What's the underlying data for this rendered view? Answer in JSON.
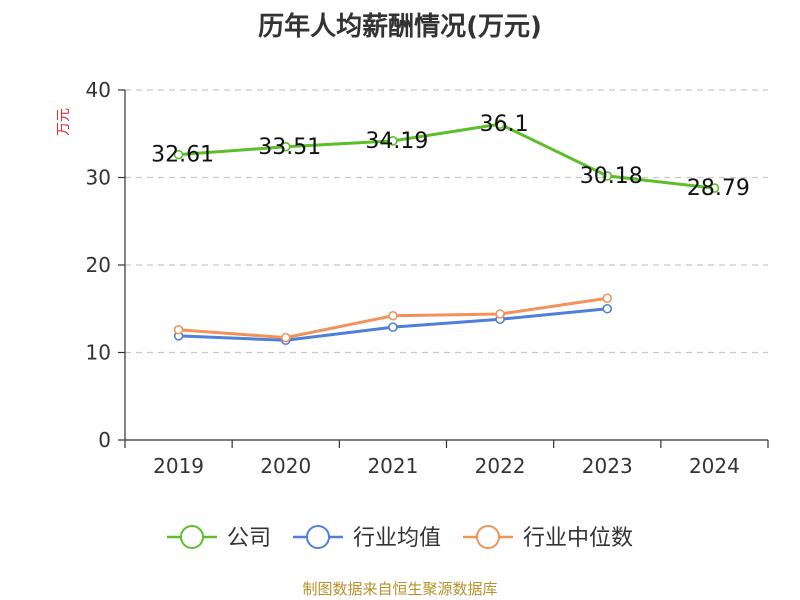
{
  "chart_data": {
    "type": "line",
    "title": "历年人均薪酬情况(万元)",
    "ylabel": "万元",
    "xlabel": "",
    "ylim": [
      0,
      40
    ],
    "yticks": [
      0,
      10,
      20,
      30,
      40
    ],
    "categories": [
      "2019",
      "2020",
      "2021",
      "2022",
      "2023",
      "2024"
    ],
    "grid": "horizontal-dashed",
    "legend_position": "bottom-center",
    "series": [
      {
        "name": "公司",
        "color": "#5cbf2a",
        "values": [
          32.61,
          33.51,
          34.19,
          36.1,
          30.18,
          28.79
        ],
        "labels": [
          "32.61",
          "33.51",
          "34.19",
          "36.1",
          "30.18",
          "28.79"
        ]
      },
      {
        "name": "行业均值",
        "color": "#4f7fd9",
        "values": [
          11.9,
          11.4,
          12.9,
          13.8,
          15.0,
          null
        ]
      },
      {
        "name": "行业中位数",
        "color": "#f2925b",
        "values": [
          12.6,
          11.7,
          14.2,
          14.4,
          16.2,
          null
        ]
      }
    ],
    "source": "制图数据来自恒生聚源数据库"
  }
}
